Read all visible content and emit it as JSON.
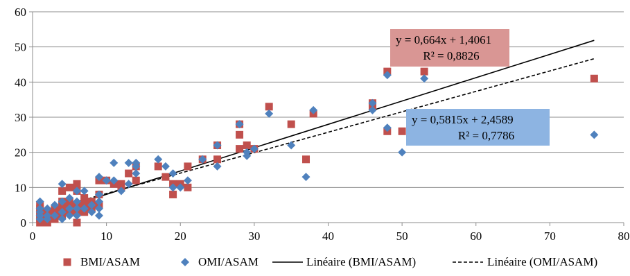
{
  "chart_data": {
    "type": "scatter",
    "xlim": [
      0,
      80
    ],
    "ylim": [
      0,
      60
    ],
    "x_ticks": [
      "0",
      "10",
      "20",
      "30",
      "40",
      "50",
      "60",
      "70",
      "80"
    ],
    "y_ticks": [
      "0",
      "10",
      "20",
      "30",
      "40",
      "50",
      "60"
    ],
    "grid": "horizontal",
    "legend_position": "bottom",
    "series": [
      {
        "name": "BMI/ASAM",
        "marker": "square",
        "color": "#C0504D",
        "points": [
          [
            1,
            0
          ],
          [
            1,
            1
          ],
          [
            1,
            2
          ],
          [
            1,
            3
          ],
          [
            1,
            4
          ],
          [
            1,
            5
          ],
          [
            2,
            0
          ],
          [
            2,
            1
          ],
          [
            2,
            2
          ],
          [
            2,
            3
          ],
          [
            3,
            1
          ],
          [
            3,
            2
          ],
          [
            3,
            3
          ],
          [
            3,
            4
          ],
          [
            4,
            2
          ],
          [
            4,
            3
          ],
          [
            4,
            5
          ],
          [
            4,
            6
          ],
          [
            4,
            9
          ],
          [
            5,
            3
          ],
          [
            5,
            4
          ],
          [
            5,
            6
          ],
          [
            5,
            10
          ],
          [
            6,
            0
          ],
          [
            6,
            3
          ],
          [
            6,
            5
          ],
          [
            6,
            9
          ],
          [
            6,
            11
          ],
          [
            7,
            3
          ],
          [
            7,
            5
          ],
          [
            7,
            7
          ],
          [
            8,
            4
          ],
          [
            8,
            6
          ],
          [
            9,
            5
          ],
          [
            9,
            8
          ],
          [
            9,
            12
          ],
          [
            10,
            12
          ],
          [
            11,
            11
          ],
          [
            12,
            10
          ],
          [
            12,
            11
          ],
          [
            13,
            14
          ],
          [
            14,
            12
          ],
          [
            14,
            16
          ],
          [
            17,
            16
          ],
          [
            18,
            13
          ],
          [
            19,
            8
          ],
          [
            19,
            11
          ],
          [
            20,
            11
          ],
          [
            21,
            10
          ],
          [
            21,
            16
          ],
          [
            23,
            18
          ],
          [
            25,
            18
          ],
          [
            25,
            22
          ],
          [
            28,
            21
          ],
          [
            28,
            25
          ],
          [
            28,
            28
          ],
          [
            29,
            22
          ],
          [
            30,
            21
          ],
          [
            32,
            33
          ],
          [
            35,
            28
          ],
          [
            37,
            18
          ],
          [
            38,
            31
          ],
          [
            46,
            33
          ],
          [
            46,
            34
          ],
          [
            48,
            26
          ],
          [
            48,
            43
          ],
          [
            50,
            26
          ],
          [
            53,
            43
          ],
          [
            76,
            41
          ]
        ],
        "trendline": {
          "name": "Linéaire (BMI/ASAM)",
          "style": "solid",
          "slope": 0.664,
          "intercept": 1.4061,
          "x_range": [
            1,
            76
          ],
          "equation": "y = 0,664x + 1,4061",
          "r2": "R² = 0,8826",
          "label_bg": "#D99694"
        }
      },
      {
        "name": "OMI/ASAM",
        "marker": "diamond",
        "color": "#4F81BD",
        "points": [
          [
            1,
            1
          ],
          [
            1,
            2
          ],
          [
            1,
            3
          ],
          [
            1,
            4
          ],
          [
            1,
            6
          ],
          [
            2,
            1
          ],
          [
            2,
            2
          ],
          [
            2,
            4
          ],
          [
            3,
            2
          ],
          [
            3,
            5
          ],
          [
            4,
            1
          ],
          [
            4,
            3
          ],
          [
            4,
            6
          ],
          [
            4,
            11
          ],
          [
            5,
            2
          ],
          [
            5,
            4
          ],
          [
            5,
            7
          ],
          [
            6,
            2
          ],
          [
            6,
            4
          ],
          [
            6,
            6
          ],
          [
            6,
            9
          ],
          [
            7,
            4
          ],
          [
            7,
            9
          ],
          [
            8,
            3
          ],
          [
            8,
            5
          ],
          [
            9,
            2
          ],
          [
            9,
            4
          ],
          [
            9,
            6
          ],
          [
            9,
            8
          ],
          [
            9,
            13
          ],
          [
            10,
            12
          ],
          [
            11,
            12
          ],
          [
            11,
            17
          ],
          [
            12,
            9
          ],
          [
            13,
            11
          ],
          [
            13,
            17
          ],
          [
            14,
            14
          ],
          [
            14,
            16
          ],
          [
            14,
            17
          ],
          [
            17,
            18
          ],
          [
            18,
            16
          ],
          [
            19,
            10
          ],
          [
            19,
            14
          ],
          [
            20,
            10
          ],
          [
            21,
            12
          ],
          [
            23,
            18
          ],
          [
            25,
            16
          ],
          [
            25,
            22
          ],
          [
            28,
            28
          ],
          [
            29,
            19
          ],
          [
            29,
            20
          ],
          [
            30,
            21
          ],
          [
            32,
            31
          ],
          [
            35,
            22
          ],
          [
            37,
            13
          ],
          [
            38,
            32
          ],
          [
            46,
            32
          ],
          [
            46,
            34
          ],
          [
            48,
            27
          ],
          [
            48,
            42
          ],
          [
            50,
            20
          ],
          [
            53,
            41
          ],
          [
            76,
            25
          ]
        ],
        "trendline": {
          "name": "Linéaire (OMI/ASAM)",
          "style": "dashed",
          "slope": 0.5815,
          "intercept": 2.4589,
          "x_range": [
            1,
            76
          ],
          "equation": "y = 0,5815x + 2,4589",
          "r2": "R² = 0,7786",
          "label_bg": "#8DB4E2"
        }
      }
    ]
  }
}
